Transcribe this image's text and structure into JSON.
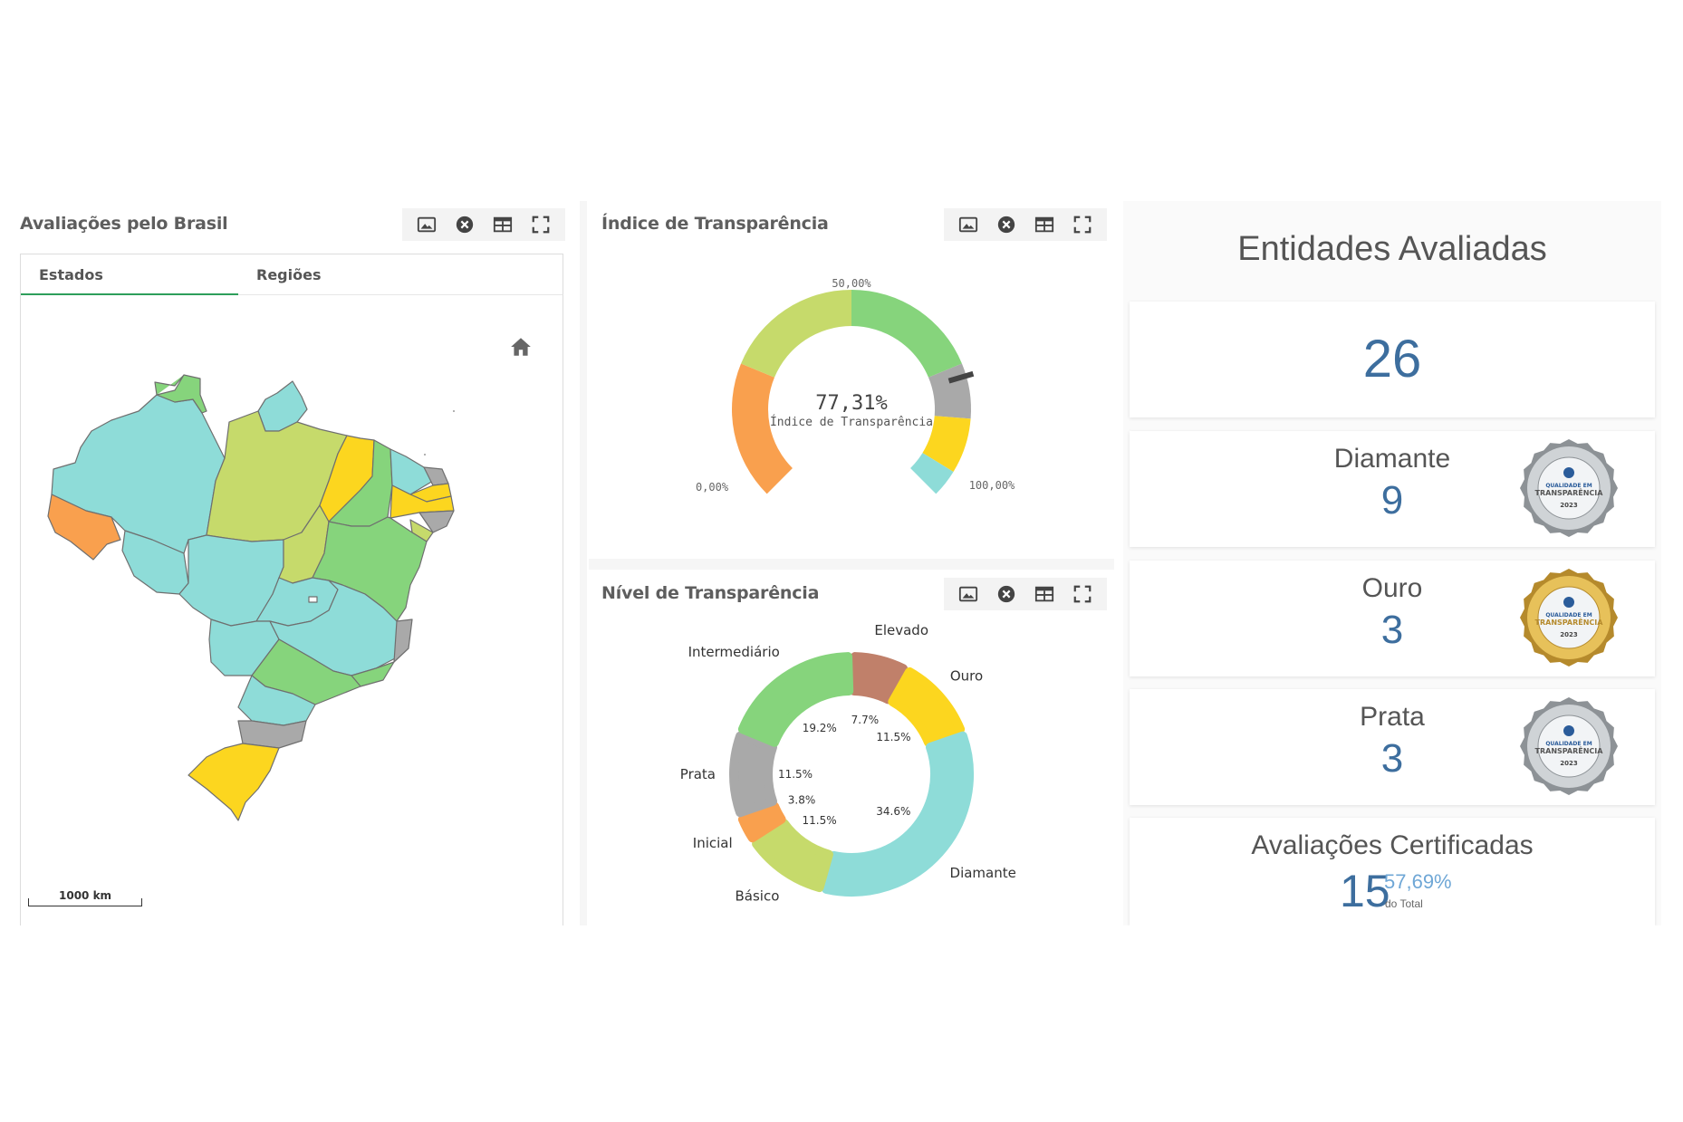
{
  "map_panel": {
    "title": "Avaliações pelo Brasil",
    "tabs": [
      {
        "label": "Estados",
        "active": true
      },
      {
        "label": "Regiões",
        "active": false
      }
    ],
    "scale_label": "1000 km",
    "toolbar": [
      "image-icon",
      "close-circle-icon",
      "table-icon",
      "fullscreen-icon"
    ]
  },
  "gauge_panel": {
    "title": "Índice de Transparência",
    "value_text": "77,31%",
    "value_label": "Índice de Transparência",
    "min_label": "0,00%",
    "mid_label": "50,00%",
    "max_label": "100,00%",
    "value": 77.31
  },
  "donut_panel": {
    "title": "Nível de Transparência"
  },
  "entities": {
    "title": "Entidades Avaliadas",
    "total": "26",
    "levels": [
      {
        "name": "Diamante",
        "count": "9",
        "medal": "silver-medal-icon"
      },
      {
        "name": "Ouro",
        "count": "3",
        "medal": "gold-medal-icon"
      },
      {
        "name": "Prata",
        "count": "3",
        "medal": "silver-medal-icon"
      }
    ],
    "certified": {
      "title": "Avaliações Certificadas",
      "count": "15",
      "percent": "57,69%",
      "percent_label": "do Total"
    },
    "medal_text": {
      "line1": "QUALIDADE EM",
      "line2": "TRANSPARÊNCIA",
      "year": "2023"
    }
  },
  "colors": {
    "accent_green": "#2e9e5b",
    "number_blue": "#3d6e9e",
    "orange": "#f9a04e",
    "light_green": "#c6da6b",
    "green": "#86d47c",
    "gray": "#a9a9a9",
    "yellow": "#fcd61f",
    "cyan": "#8edcd8",
    "brown": "#c0806a"
  },
  "chart_data": [
    {
      "type": "gauge",
      "value": 77.31,
      "range": [
        0,
        100
      ],
      "title": "Índice de Transparência",
      "bands": [
        {
          "from": 0,
          "to": 25,
          "color": "#f9a04e"
        },
        {
          "from": 25,
          "to": 50,
          "color": "#c6da6b"
        },
        {
          "from": 50,
          "to": 75,
          "color": "#86d47c"
        },
        {
          "from": 75,
          "to": 85,
          "color": "#a9a9a9"
        },
        {
          "from": 85,
          "to": 95,
          "color": "#fcd61f"
        },
        {
          "from": 95,
          "to": 100,
          "color": "#8edcd8"
        }
      ]
    },
    {
      "type": "pie",
      "title": "Nível de Transparência",
      "slices": [
        {
          "label": "Elevado",
          "value": 7.7,
          "pct": "7.7%",
          "color": "#c0806a"
        },
        {
          "label": "Ouro",
          "value": 11.5,
          "pct": "11.5%",
          "color": "#fcd61f"
        },
        {
          "label": "Diamante",
          "value": 34.6,
          "pct": "34.6%",
          "color": "#8edcd8"
        },
        {
          "label": "Básico",
          "value": 11.5,
          "pct": "11.5%",
          "color": "#c6da6b"
        },
        {
          "label": "Inicial",
          "value": 3.8,
          "pct": "3.8%",
          "color": "#f9a04e"
        },
        {
          "label": "Prata",
          "value": 11.5,
          "pct": "11.5%",
          "color": "#a9a9a9"
        },
        {
          "label": "Intermediário",
          "value": 19.2,
          "pct": "19.2%",
          "color": "#86d47c"
        }
      ]
    }
  ]
}
